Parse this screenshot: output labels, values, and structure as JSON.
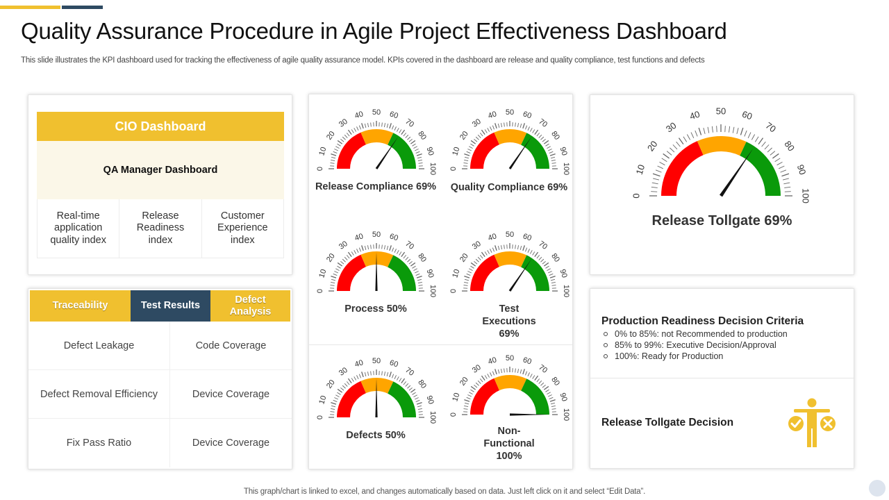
{
  "header": {
    "title": "Quality Assurance Procedure in Agile Project Effectiveness Dashboard",
    "subtitle": "This slide illustrates the KPI dashboard used for tracking the effectiveness of agile quality assurance model. KPIs covered in the dashboard are release and quality compliance, test functions and defects"
  },
  "colors": {
    "accent_yellow": "#F0C02F",
    "accent_navy": "#2E4A62",
    "gauge_red": "#FF0000",
    "gauge_orange": "#FFA500",
    "gauge_green": "#0A9A0A"
  },
  "cio_card": {
    "header": "CIO Dashboard",
    "sub_header": "QA Manager Dashboard",
    "indices": [
      "Real-time application quality index",
      "Release Readiness index",
      "Customer Experience index"
    ]
  },
  "trace_card": {
    "tabs": [
      "Traceability",
      "Test Results",
      "Defect Analysis"
    ],
    "rows": [
      [
        "Defect Leakage",
        "Code Coverage"
      ],
      [
        "Defect Removal Efficiency",
        "Device Coverage"
      ],
      [
        "Fix Pass Ratio",
        "Device Coverage"
      ]
    ]
  },
  "gauges": {
    "scale_labels": [
      "0",
      "10",
      "20",
      "30",
      "40",
      "50",
      "60",
      "70",
      "80",
      "90",
      "100"
    ],
    "items": [
      {
        "label": "Release Compliance 69%",
        "value": 69
      },
      {
        "label": "Quality Compliance 69%",
        "value": 69
      },
      {
        "label": "Process 50%",
        "value": 50
      },
      {
        "label": "Test Executions 69%",
        "value": 69
      },
      {
        "label": "Defects 50%",
        "value": 50
      },
      {
        "label": "Non-Functional 100%",
        "value": 100
      }
    ]
  },
  "tollgate": {
    "label": "Release Tollgate  69%",
    "value": 69
  },
  "production": {
    "title": "Production Readiness Decision Criteria",
    "criteria": [
      "0% to 85%: not Recommended  to production",
      "85% to 99%: Executive Decision/Approval",
      "100%: Ready for Production"
    ],
    "decision_label": "Release Tollgate Decision",
    "decision_icon": "person-check-cross-icon"
  },
  "footer": {
    "note": "This graph/chart is linked to excel,  and changes automatically based on data. Just left click on it and select “Edit Data”."
  }
}
